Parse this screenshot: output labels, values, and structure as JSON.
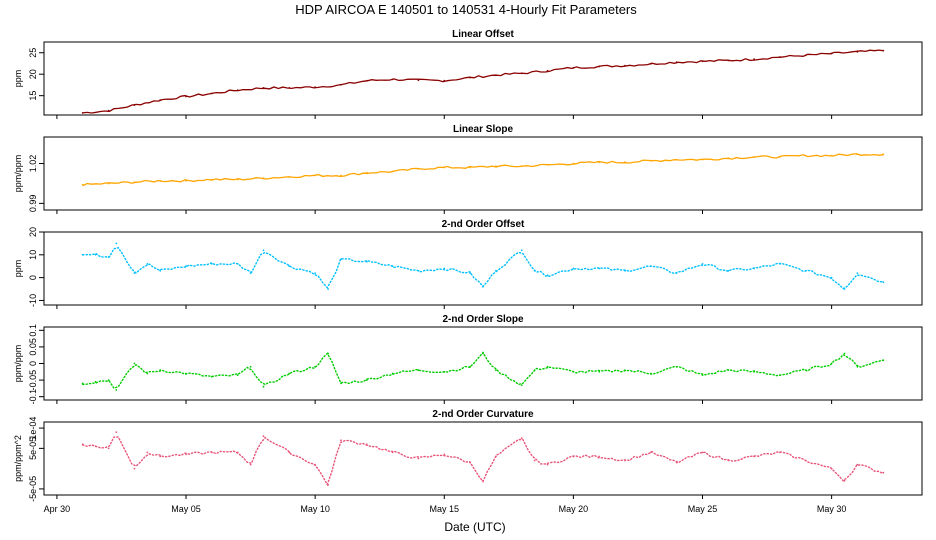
{
  "chart_data": {
    "type": "line",
    "title": "HDP   AIRCOA E   140501 to 140531   4-Hourly Fit Parameters",
    "xlabel": "Date (UTC)",
    "x_ticks": [
      "Apr 30",
      "May 05",
      "May 10",
      "May 15",
      "May 20",
      "May 25",
      "May 30"
    ],
    "x_tick_days": [
      0,
      5,
      10,
      15,
      20,
      25,
      30
    ],
    "xlim": [
      -0.5,
      33.5
    ],
    "panels": [
      {
        "title": "Linear Offset",
        "ylabel": "ppm",
        "ylim": [
          10.5,
          27.5
        ],
        "yticks": [
          15,
          20,
          25
        ],
        "color": "#8b0000",
        "render": "line",
        "x": [
          1.0,
          2.0,
          3.0,
          4.0,
          5.0,
          6.0,
          7.0,
          8.0,
          9.0,
          10.0,
          11.0,
          12.0,
          13.0,
          14.0,
          15.0,
          16.0,
          17.0,
          18.0,
          19.0,
          20.0,
          21.0,
          22.0,
          23.0,
          24.0,
          25.0,
          26.0,
          27.0,
          28.0,
          29.0,
          30.0,
          31.0,
          32.0
        ],
        "values": [
          11.0,
          11.5,
          12.8,
          14.0,
          14.8,
          15.5,
          16.3,
          16.8,
          16.8,
          17.0,
          17.5,
          18.5,
          18.8,
          18.6,
          18.5,
          19.2,
          19.8,
          20.2,
          20.8,
          21.5,
          21.8,
          22.0,
          22.4,
          22.8,
          23.0,
          23.2,
          23.5,
          24.0,
          24.4,
          24.8,
          25.2,
          25.5
        ]
      },
      {
        "title": "Linear Slope",
        "ylabel": "ppm/ppm",
        "ylim": [
          0.985,
          1.04
        ],
        "yticks": [
          0.99,
          1.02
        ],
        "color": "#ffa500",
        "render": "line",
        "x": [
          1.0,
          2.0,
          3.0,
          4.0,
          5.0,
          6.0,
          7.0,
          8.0,
          9.0,
          10.0,
          11.0,
          12.0,
          13.0,
          14.0,
          15.0,
          16.0,
          17.0,
          18.0,
          19.0,
          20.0,
          21.0,
          22.0,
          23.0,
          24.0,
          25.0,
          26.0,
          27.0,
          28.0,
          29.0,
          30.0,
          31.0,
          32.0
        ],
        "values": [
          1.004,
          1.005,
          1.006,
          1.007,
          1.007,
          1.008,
          1.008,
          1.009,
          1.01,
          1.011,
          1.011,
          1.013,
          1.014,
          1.016,
          1.017,
          1.017,
          1.018,
          1.018,
          1.019,
          1.02,
          1.021,
          1.021,
          1.022,
          1.023,
          1.023,
          1.024,
          1.025,
          1.025,
          1.026,
          1.026,
          1.027,
          1.027
        ]
      },
      {
        "title": "2-nd Order Offset",
        "ylabel": "ppm",
        "ylim": [
          -12,
          20
        ],
        "yticks": [
          -10,
          0,
          10,
          20
        ],
        "color": "#00bfff",
        "render": "dotted",
        "x": [
          1.0,
          1.5,
          2.0,
          2.3,
          3.0,
          3.5,
          4.0,
          5.0,
          6.0,
          7.0,
          7.5,
          8.0,
          9.0,
          10.0,
          10.5,
          11.0,
          12.0,
          13.0,
          14.0,
          15.0,
          16.0,
          16.5,
          17.0,
          18.0,
          18.5,
          19.0,
          20.0,
          21.0,
          22.0,
          23.0,
          24.0,
          25.0,
          26.0,
          27.0,
          28.0,
          29.0,
          30.0,
          30.5,
          31.0,
          32.0
        ],
        "values": [
          10,
          10,
          9,
          15,
          2,
          6,
          3,
          5,
          6,
          6,
          2,
          12,
          5,
          2,
          -5,
          8,
          7,
          5,
          3,
          4,
          2,
          -4,
          3,
          12,
          3,
          1,
          4,
          4,
          3,
          5,
          2,
          6,
          3,
          4,
          6,
          3,
          0,
          -5,
          2,
          -2
        ]
      },
      {
        "title": "2-nd Order Slope",
        "ylabel": "ppm/ppm",
        "ylim": [
          -0.11,
          0.11
        ],
        "yticks": [
          -0.1,
          -0.05,
          0.0,
          0.05,
          0.1
        ],
        "color": "#00cc00",
        "render": "dotted",
        "x": [
          1.0,
          1.5,
          2.0,
          2.3,
          3.0,
          3.5,
          4.0,
          5.0,
          6.0,
          7.0,
          7.5,
          8.0,
          9.0,
          10.0,
          10.5,
          11.0,
          12.0,
          13.0,
          14.0,
          15.0,
          16.0,
          16.5,
          17.0,
          18.0,
          18.5,
          19.0,
          20.0,
          21.0,
          22.0,
          23.0,
          24.0,
          25.0,
          26.0,
          27.0,
          28.0,
          29.0,
          30.0,
          30.5,
          31.0,
          32.0
        ],
        "values": [
          -0.06,
          -0.055,
          -0.05,
          -0.08,
          0.0,
          -0.03,
          -0.02,
          -0.03,
          -0.04,
          -0.035,
          -0.01,
          -0.07,
          -0.03,
          -0.01,
          0.03,
          -0.06,
          -0.05,
          -0.03,
          -0.02,
          -0.025,
          -0.01,
          0.03,
          -0.02,
          -0.065,
          -0.02,
          -0.01,
          -0.025,
          -0.025,
          -0.02,
          -0.03,
          -0.01,
          -0.035,
          -0.02,
          -0.025,
          -0.035,
          -0.02,
          0.0,
          0.03,
          -0.01,
          0.01
        ]
      },
      {
        "title": "2-nd Order Curvature",
        "ylabel": "ppm/ppm^2",
        "ylim": [
          -6.5e-05,
          0.000115
        ],
        "yticks": [
          -5e-05,
          5e-05,
          0.0001
        ],
        "ytick_labels": [
          "-5e-05",
          "5e-05",
          "1e-04"
        ],
        "color": "#e8557a",
        "render": "dotted",
        "x": [
          1.0,
          1.5,
          2.0,
          2.3,
          3.0,
          3.5,
          4.0,
          5.0,
          6.0,
          7.0,
          7.5,
          8.0,
          9.0,
          10.0,
          10.5,
          11.0,
          12.0,
          13.0,
          14.0,
          15.0,
          16.0,
          16.5,
          17.0,
          18.0,
          18.5,
          19.0,
          20.0,
          21.0,
          22.0,
          23.0,
          24.0,
          25.0,
          26.0,
          27.0,
          28.0,
          29.0,
          30.0,
          30.5,
          31.0,
          32.0
        ],
        "values": [
          6e-05,
          5.5e-05,
          5e-05,
          9e-05,
          0.0,
          4e-05,
          3e-05,
          3.5e-05,
          4e-05,
          4e-05,
          1e-05,
          8e-05,
          4e-05,
          1e-05,
          -4e-05,
          7e-05,
          6e-05,
          4e-05,
          2.5e-05,
          3.5e-05,
          1.5e-05,
          -3e-05,
          3e-05,
          7.5e-05,
          2e-05,
          1e-05,
          3e-05,
          3e-05,
          2e-05,
          4e-05,
          1.5e-05,
          4e-05,
          2e-05,
          3e-05,
          4e-05,
          2e-05,
          0.0,
          -3e-05,
          1e-05,
          -1e-05
        ]
      }
    ]
  }
}
